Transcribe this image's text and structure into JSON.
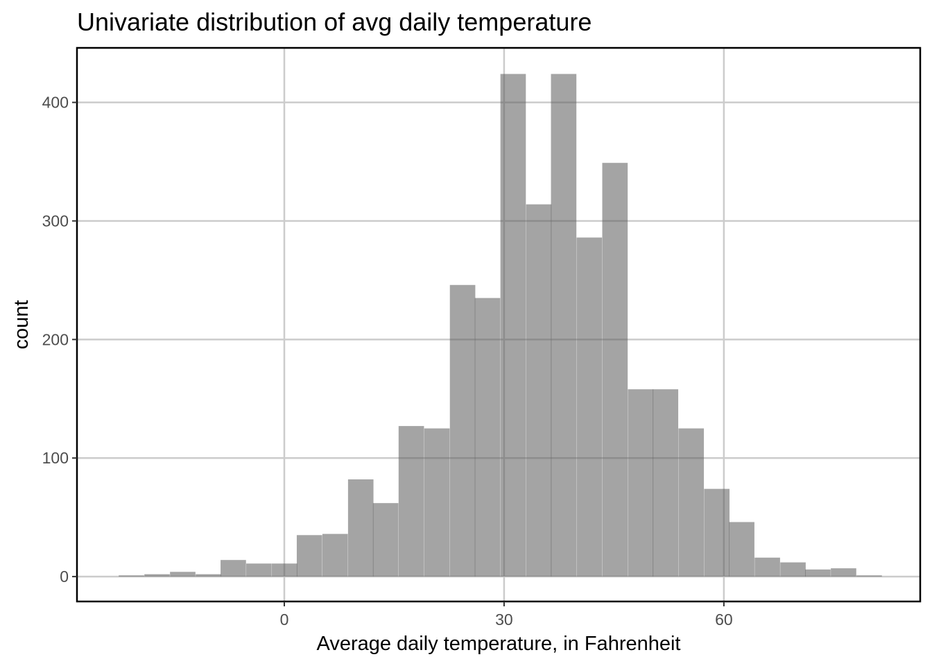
{
  "chart_data": {
    "type": "bar",
    "title": "Univariate distribution of avg daily temperature",
    "xlabel": "Average daily temperature, in Fahrenheit",
    "ylabel": "count",
    "xlim": [
      -28.3,
      86.8
    ],
    "ylim": [
      -21,
      446
    ],
    "xticks": [
      0,
      30,
      60
    ],
    "yticks": [
      0,
      100,
      200,
      300,
      400
    ],
    "grid": true,
    "bin_width": 3.47,
    "bins": [
      {
        "x_start": -22.6,
        "count": 1
      },
      {
        "x_start": -19.1,
        "count": 2
      },
      {
        "x_start": -15.6,
        "count": 4
      },
      {
        "x_start": -12.1,
        "count": 2
      },
      {
        "x_start": -8.7,
        "count": 14
      },
      {
        "x_start": -5.2,
        "count": 11
      },
      {
        "x_start": -1.7,
        "count": 11
      },
      {
        "x_start": 1.7,
        "count": 35
      },
      {
        "x_start": 5.2,
        "count": 36
      },
      {
        "x_start": 8.7,
        "count": 82
      },
      {
        "x_start": 12.1,
        "count": 62
      },
      {
        "x_start": 15.6,
        "count": 127
      },
      {
        "x_start": 19.1,
        "count": 125
      },
      {
        "x_start": 22.6,
        "count": 246
      },
      {
        "x_start": 26.0,
        "count": 235
      },
      {
        "x_start": 29.5,
        "count": 424
      },
      {
        "x_start": 33.0,
        "count": 314
      },
      {
        "x_start": 36.4,
        "count": 424
      },
      {
        "x_start": 39.9,
        "count": 286
      },
      {
        "x_start": 43.4,
        "count": 349
      },
      {
        "x_start": 46.9,
        "count": 158
      },
      {
        "x_start": 50.3,
        "count": 158
      },
      {
        "x_start": 53.8,
        "count": 125
      },
      {
        "x_start": 57.3,
        "count": 74
      },
      {
        "x_start": 60.7,
        "count": 46
      },
      {
        "x_start": 64.2,
        "count": 16
      },
      {
        "x_start": 67.7,
        "count": 12
      },
      {
        "x_start": 71.1,
        "count": 6
      },
      {
        "x_start": 74.6,
        "count": 7
      },
      {
        "x_start": 78.1,
        "count": 1
      }
    ],
    "colors": {
      "bar_fill": "#595959",
      "grid": "#cccccc",
      "border": "#000000"
    }
  }
}
